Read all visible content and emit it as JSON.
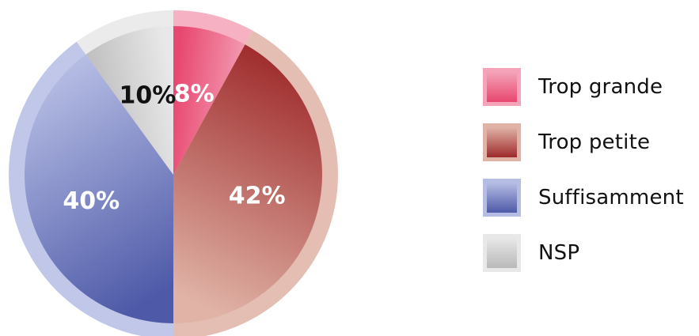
{
  "chart_data": {
    "type": "pie",
    "title": "",
    "slices": [
      {
        "name": "Trop grande",
        "value": 8,
        "label": "8%",
        "color": "#e8476f",
        "light": "#f4a3b8",
        "label_color": "#ffffff"
      },
      {
        "name": "Trop petite",
        "value": 42,
        "label": "42%",
        "color": "#9e2a2b",
        "light": "#e0b3a6",
        "label_color": "#ffffff"
      },
      {
        "name": "Suffisamment",
        "value": 40,
        "label": "40%",
        "color": "#4e5aa8",
        "light": "#b6bde4",
        "label_color": "#ffffff"
      },
      {
        "name": "NSP",
        "value": 10,
        "label": "10%",
        "color": "#b9b9b9",
        "light": "#e8e8e8",
        "label_color": "#111111"
      }
    ],
    "legend_position": "right"
  }
}
